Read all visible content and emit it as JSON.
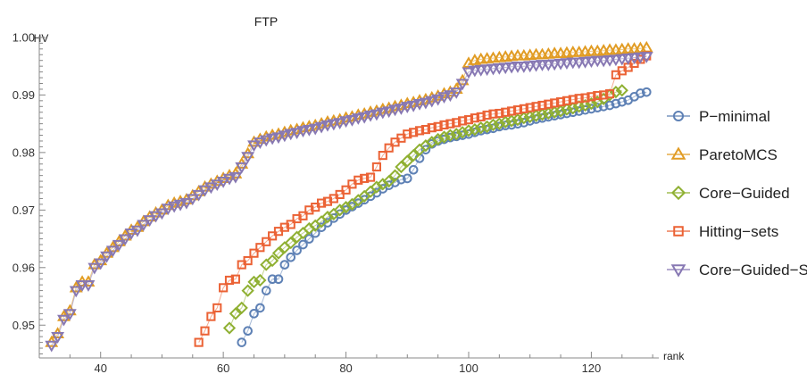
{
  "chart_data": {
    "type": "scatter",
    "title": "FTP",
    "xlabel": "rank",
    "ylabel": "HV",
    "xlim": [
      30,
      131
    ],
    "ylim": [
      0.9443,
      1.0003
    ],
    "xticks": [
      40,
      60,
      80,
      100,
      120
    ],
    "xtick_labels": [
      "40",
      "60",
      "80",
      "100",
      "120"
    ],
    "yticks": [
      0.95,
      0.96,
      0.97,
      0.98,
      0.99,
      1.0
    ],
    "ytick_labels": [
      "0.95",
      "0.96",
      "0.97",
      "0.98",
      "0.99",
      "1.00"
    ],
    "legend_position": "right",
    "series": [
      {
        "name": "P−minimal",
        "marker": "circle",
        "color": "#5e81b5",
        "x": [
          63,
          64,
          65,
          66,
          67,
          68,
          69,
          70,
          71,
          72,
          73,
          74,
          75,
          76,
          77,
          78,
          79,
          80,
          81,
          82,
          83,
          84,
          85,
          86,
          87,
          88,
          89,
          90,
          91,
          92,
          93,
          94,
          95,
          96,
          97,
          98,
          99,
          100,
          101,
          102,
          103,
          104,
          105,
          106,
          107,
          108,
          109,
          110,
          111,
          112,
          113,
          114,
          115,
          116,
          117,
          118,
          119,
          120,
          121,
          122,
          123,
          124,
          125,
          126,
          127,
          128,
          129
        ],
        "y": [
          0.947,
          0.949,
          0.952,
          0.953,
          0.956,
          0.958,
          0.958,
          0.9605,
          0.9618,
          0.963,
          0.964,
          0.965,
          0.966,
          0.967,
          0.9678,
          0.9686,
          0.9693,
          0.97,
          0.9706,
          0.9712,
          0.9718,
          0.9724,
          0.973,
          0.9737,
          0.9743,
          0.9748,
          0.9753,
          0.9755,
          0.977,
          0.979,
          0.9805,
          0.9815,
          0.982,
          0.9823,
          0.9826,
          0.9828,
          0.983,
          0.9832,
          0.9835,
          0.9838,
          0.984,
          0.9842,
          0.9845,
          0.9847,
          0.9848,
          0.985,
          0.9852,
          0.9855,
          0.9858,
          0.986,
          0.9862,
          0.9864,
          0.9866,
          0.9868,
          0.987,
          0.9872,
          0.9874,
          0.9876,
          0.9878,
          0.988,
          0.9882,
          0.9885,
          0.9888,
          0.9891,
          0.9897,
          0.9903,
          0.9905
        ]
      },
      {
        "name": "ParetoMCS",
        "marker": "triangle-up",
        "color": "#e19c24",
        "x": [
          32,
          33,
          34,
          35,
          36,
          37,
          38,
          39,
          40,
          41,
          42,
          43,
          44,
          45,
          46,
          47,
          48,
          49,
          50,
          51,
          52,
          53,
          54,
          55,
          56,
          57,
          58,
          59,
          60,
          61,
          62,
          63,
          64,
          65,
          66,
          67,
          68,
          69,
          70,
          71,
          72,
          73,
          74,
          75,
          76,
          77,
          78,
          79,
          80,
          81,
          82,
          83,
          84,
          85,
          86,
          87,
          88,
          89,
          90,
          91,
          92,
          93,
          94,
          95,
          96,
          97,
          98,
          99,
          100,
          101,
          102,
          103,
          104,
          105,
          106,
          107,
          108,
          109,
          110,
          111,
          112,
          113,
          114,
          115,
          116,
          117,
          118,
          119,
          120,
          121,
          122,
          123,
          124,
          125,
          126,
          127,
          128,
          129
        ],
        "y": [
          0.947,
          0.9485,
          0.9515,
          0.9525,
          0.9565,
          0.9575,
          0.9575,
          0.9605,
          0.9612,
          0.9625,
          0.9635,
          0.9645,
          0.9655,
          0.9665,
          0.967,
          0.968,
          0.9688,
          0.9695,
          0.97,
          0.9708,
          0.9712,
          0.9715,
          0.9718,
          0.9725,
          0.9732,
          0.974,
          0.9745,
          0.975,
          0.9755,
          0.976,
          0.9763,
          0.978,
          0.9798,
          0.9818,
          0.9823,
          0.9827,
          0.983,
          0.9832,
          0.9835,
          0.9838,
          0.984,
          0.9843,
          0.9845,
          0.9847,
          0.985,
          0.9853,
          0.9855,
          0.9857,
          0.986,
          0.9862,
          0.9865,
          0.9867,
          0.987,
          0.9872,
          0.9875,
          0.9877,
          0.988,
          0.9882,
          0.9885,
          0.9887,
          0.989,
          0.9892,
          0.9895,
          0.9898,
          0.9902,
          0.9905,
          0.991,
          0.9925,
          0.9955,
          0.996,
          0.9962,
          0.9963,
          0.9964,
          0.9965,
          0.9966,
          0.9967,
          0.9968,
          0.9968,
          0.9969,
          0.997,
          0.997,
          0.9971,
          0.9972,
          0.9972,
          0.9973,
          0.9974,
          0.9974,
          0.9975,
          0.9976,
          0.9976,
          0.9977,
          0.9978,
          0.9978,
          0.9979,
          0.998,
          0.998,
          0.9981,
          0.9982
        ]
      },
      {
        "name": "Core−Guided",
        "marker": "diamond",
        "color": "#8fb032",
        "x": [
          61,
          62,
          63,
          64,
          65,
          66,
          67,
          68,
          69,
          70,
          71,
          72,
          73,
          74,
          75,
          76,
          77,
          78,
          79,
          80,
          81,
          82,
          83,
          84,
          85,
          86,
          87,
          88,
          89,
          90,
          91,
          92,
          93,
          94,
          95,
          96,
          97,
          98,
          99,
          100,
          101,
          102,
          103,
          104,
          105,
          106,
          107,
          108,
          109,
          110,
          111,
          112,
          113,
          114,
          115,
          116,
          117,
          118,
          119,
          120,
          121,
          122,
          123,
          124,
          125
        ],
        "y": [
          0.9495,
          0.952,
          0.953,
          0.956,
          0.9575,
          0.9578,
          0.9605,
          0.9612,
          0.9625,
          0.9635,
          0.9643,
          0.9653,
          0.966,
          0.9668,
          0.9673,
          0.968,
          0.9688,
          0.9693,
          0.97,
          0.9705,
          0.971,
          0.9717,
          0.9724,
          0.9732,
          0.974,
          0.9745,
          0.975,
          0.976,
          0.9775,
          0.9785,
          0.9795,
          0.9805,
          0.9812,
          0.9818,
          0.9823,
          0.9827,
          0.983,
          0.9832,
          0.9835,
          0.9838,
          0.984,
          0.9843,
          0.9845,
          0.9848,
          0.985,
          0.9853,
          0.9855,
          0.9857,
          0.986,
          0.9862,
          0.9864,
          0.9866,
          0.9868,
          0.987,
          0.9872,
          0.9875,
          0.9877,
          0.988,
          0.9882,
          0.9885,
          0.9888,
          0.9893,
          0.99,
          0.9905,
          0.9908
        ]
      },
      {
        "name": "Hitting−sets",
        "marker": "square",
        "color": "#eb6235",
        "x": [
          56,
          57,
          58,
          59,
          60,
          61,
          62,
          63,
          64,
          65,
          66,
          67,
          68,
          69,
          70,
          71,
          72,
          73,
          74,
          75,
          76,
          77,
          78,
          79,
          80,
          81,
          82,
          83,
          84,
          85,
          86,
          87,
          88,
          89,
          90,
          91,
          92,
          93,
          94,
          95,
          96,
          97,
          98,
          99,
          100,
          101,
          102,
          103,
          104,
          105,
          106,
          107,
          108,
          109,
          110,
          111,
          112,
          113,
          114,
          115,
          116,
          117,
          118,
          119,
          120,
          121,
          122,
          123,
          124,
          125,
          126,
          127,
          128,
          129
        ],
        "y": [
          0.947,
          0.949,
          0.9515,
          0.953,
          0.9565,
          0.9578,
          0.958,
          0.9605,
          0.9612,
          0.9625,
          0.9635,
          0.9645,
          0.9655,
          0.9663,
          0.967,
          0.9675,
          0.9685,
          0.969,
          0.97,
          0.9705,
          0.9712,
          0.9715,
          0.972,
          0.9727,
          0.9735,
          0.9745,
          0.9752,
          0.9755,
          0.9757,
          0.9775,
          0.9795,
          0.9808,
          0.9818,
          0.9825,
          0.9832,
          0.9835,
          0.9838,
          0.984,
          0.9843,
          0.9845,
          0.9848,
          0.985,
          0.9852,
          0.9855,
          0.9857,
          0.986,
          0.9862,
          0.9865,
          0.9867,
          0.9868,
          0.987,
          0.9872,
          0.9874,
          0.9876,
          0.9878,
          0.988,
          0.9882,
          0.9884,
          0.9886,
          0.9888,
          0.989,
          0.9892,
          0.9894,
          0.9895,
          0.9897,
          0.9899,
          0.99,
          0.9902,
          0.9935,
          0.9942,
          0.9948,
          0.9955,
          0.9962,
          0.9968
        ]
      },
      {
        "name": "Core−Guided−Strat",
        "marker": "triangle-down",
        "color": "#8778b3",
        "x": [
          32,
          33,
          34,
          35,
          36,
          37,
          38,
          39,
          40,
          41,
          42,
          43,
          44,
          45,
          46,
          47,
          48,
          49,
          50,
          51,
          52,
          53,
          54,
          55,
          56,
          57,
          58,
          59,
          60,
          61,
          62,
          63,
          64,
          65,
          66,
          67,
          68,
          69,
          70,
          71,
          72,
          73,
          74,
          75,
          76,
          77,
          78,
          79,
          80,
          81,
          82,
          83,
          84,
          85,
          86,
          87,
          88,
          89,
          90,
          91,
          92,
          93,
          94,
          95,
          96,
          97,
          98,
          99,
          100,
          101,
          102,
          103,
          104,
          105,
          106,
          107,
          108,
          109,
          110,
          111,
          112,
          113,
          114,
          115,
          116,
          117,
          118,
          119,
          120,
          121,
          122,
          123,
          124,
          125,
          126,
          127,
          128,
          129
        ],
        "y": [
          0.9465,
          0.948,
          0.951,
          0.952,
          0.956,
          0.957,
          0.957,
          0.96,
          0.9608,
          0.962,
          0.963,
          0.964,
          0.965,
          0.966,
          0.9665,
          0.9675,
          0.9683,
          0.969,
          0.9695,
          0.9703,
          0.9707,
          0.971,
          0.9713,
          0.972,
          0.9727,
          0.9735,
          0.974,
          0.9745,
          0.975,
          0.9755,
          0.9758,
          0.9775,
          0.9793,
          0.9813,
          0.9818,
          0.9822,
          0.9825,
          0.9827,
          0.983,
          0.9833,
          0.9835,
          0.9838,
          0.984,
          0.9842,
          0.9845,
          0.9848,
          0.985,
          0.9852,
          0.9855,
          0.9857,
          0.986,
          0.9862,
          0.9865,
          0.9867,
          0.987,
          0.9872,
          0.9875,
          0.9877,
          0.988,
          0.9882,
          0.9885,
          0.9887,
          0.989,
          0.9893,
          0.9897,
          0.99,
          0.9905,
          0.992,
          0.994,
          0.9943,
          0.9944,
          0.9945,
          0.9946,
          0.9947,
          0.9948,
          0.9949,
          0.995,
          0.995,
          0.9951,
          0.9952,
          0.9953,
          0.9953,
          0.9954,
          0.9955,
          0.9956,
          0.9957,
          0.9957,
          0.9958,
          0.9959,
          0.996,
          0.996,
          0.9961,
          0.9962,
          0.9963,
          0.9964,
          0.9965,
          0.9966,
          0.9967
        ]
      }
    ]
  }
}
